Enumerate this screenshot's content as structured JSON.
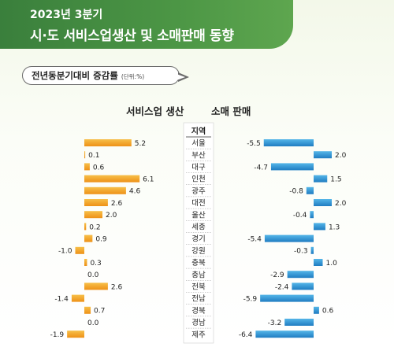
{
  "header": {
    "year_label": "2023년 3분기",
    "title": "시·도 서비스업생산 및 소매판매 동향"
  },
  "subtitle": {
    "text": "전년동분기대비 증감률",
    "unit": "(단위:%)"
  },
  "colors": {
    "header_green": "#4c9645",
    "service_bar": "#f2a127",
    "retail_bar": "#2d8fcf",
    "region_column_bg": "#ffffff"
  },
  "chart_data": {
    "type": "bar",
    "orientation": "horizontal",
    "region_header": "지역",
    "categories": [
      "서울",
      "부산",
      "대구",
      "인천",
      "광주",
      "대전",
      "울산",
      "세종",
      "경기",
      "강원",
      "충북",
      "충남",
      "전북",
      "전남",
      "경북",
      "경남",
      "제주"
    ],
    "series": [
      {
        "name": "서비스업 생산",
        "values": [
          5.2,
          0.1,
          0.6,
          6.1,
          4.6,
          2.6,
          2.0,
          0.2,
          0.9,
          -1.0,
          0.3,
          0.0,
          2.6,
          -1.4,
          0.7,
          0.0,
          -1.9
        ],
        "labels": [
          "5.2",
          "0.1",
          "0.6",
          "6.1",
          "4.6",
          "2.6",
          "2.0",
          "0.2",
          "0.9",
          "-1.0",
          "0.3",
          "0.0",
          "2.6",
          "-1.4",
          "0.7",
          "0.0",
          "-1.9"
        ]
      },
      {
        "name": "소매 판매",
        "values": [
          -5.5,
          2.0,
          -4.7,
          1.5,
          -0.8,
          2.0,
          -0.4,
          1.3,
          -5.4,
          -0.3,
          1.0,
          -2.9,
          -2.4,
          -5.9,
          0.6,
          -3.2,
          -6.4
        ],
        "labels": [
          "-5.5",
          "2.0",
          "-4.7",
          "1.5",
          "-0.8",
          "2.0",
          "-0.4",
          "1.3",
          "-5.4",
          "-0.3",
          "1.0",
          "-2.9",
          "-2.4",
          "-5.9",
          "0.6",
          "-3.2",
          "-6.4"
        ]
      }
    ]
  }
}
